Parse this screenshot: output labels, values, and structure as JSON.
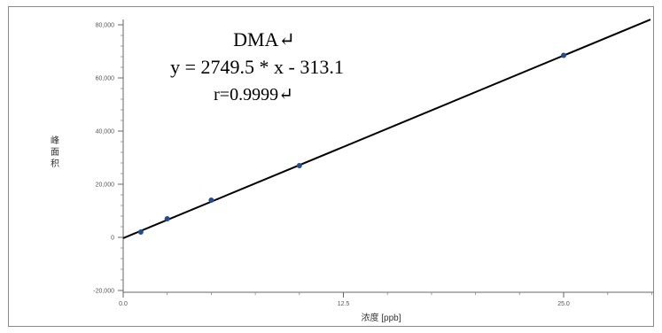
{
  "chart_data": {
    "type": "scatter",
    "title": "DMA↵",
    "annotations": [
      "y = 2749.5 * x - 313.1",
      "r=0.9999↵"
    ],
    "xlabel": "浓度 [ppb]",
    "ylabel": "峰\n面\n积",
    "xlim": [
      0,
      30
    ],
    "ylim": [
      -20000,
      80000
    ],
    "xticks": [
      0,
      12.5,
      25
    ],
    "xtick_labels": [
      "0.0",
      "12.5",
      "25.0"
    ],
    "yticks": [
      -20000,
      0,
      20000,
      40000,
      60000,
      80000
    ],
    "ytick_labels": [
      "-20,000",
      "0",
      "20,000",
      "40,000",
      "60,000",
      "80,000"
    ],
    "grid": false,
    "series": [
      {
        "x": [
          1,
          2.5,
          5,
          10,
          25
        ],
        "y": [
          2000,
          7000,
          14000,
          27000,
          68500
        ],
        "marker_color": "#1f4e99"
      }
    ],
    "fit_line": {
      "slope": 2749.5,
      "intercept": -313.1,
      "x_range": [
        0,
        30
      ],
      "color": "#000000"
    }
  }
}
